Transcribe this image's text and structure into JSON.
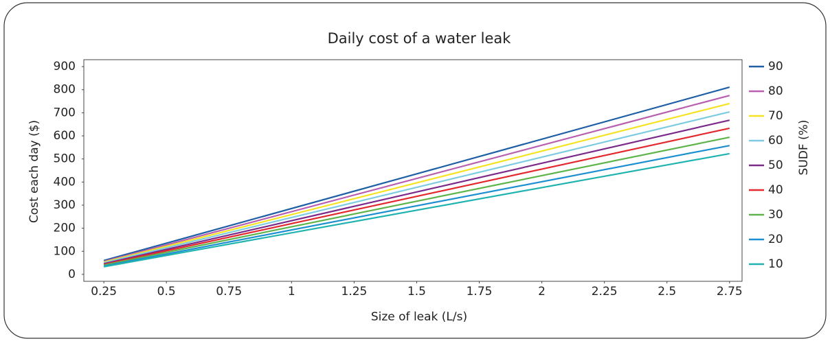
{
  "chart_data": {
    "type": "line",
    "title": "Daily cost of a water leak",
    "x_label": "Size of leak (L/s)",
    "y_label": "Cost each day ($)",
    "legend_title": "SUDF (%)",
    "x": [
      0.25,
      2.75
    ],
    "series": [
      {
        "name": "90",
        "color": "#1f5fa6",
        "values": [
          60,
          811
        ]
      },
      {
        "name": "80",
        "color": "#b85fb0",
        "values": [
          56,
          775
        ]
      },
      {
        "name": "70",
        "color": "#f5e320",
        "values": [
          53,
          740
        ]
      },
      {
        "name": "60",
        "color": "#7ccbe0",
        "values": [
          50,
          704
        ]
      },
      {
        "name": "50",
        "color": "#7b2a8a",
        "values": [
          46,
          668
        ]
      },
      {
        "name": "40",
        "color": "#e3282e",
        "values": [
          43,
          633
        ]
      },
      {
        "name": "30",
        "color": "#5db44a",
        "values": [
          40,
          594
        ]
      },
      {
        "name": "20",
        "color": "#1c8fd0",
        "values": [
          36,
          558
        ]
      },
      {
        "name": "10",
        "color": "#1fb3b0",
        "values": [
          33,
          523
        ]
      }
    ],
    "xlim": [
      0.17,
      2.8
    ],
    "ylim": [
      -30,
      930
    ],
    "xticks": [
      0.25,
      0.5,
      0.75,
      1,
      1.25,
      1.5,
      1.75,
      2,
      2.25,
      2.5,
      2.75
    ],
    "yticks": [
      0,
      100,
      200,
      300,
      400,
      500,
      600,
      700,
      800,
      900
    ],
    "legend": "right"
  }
}
